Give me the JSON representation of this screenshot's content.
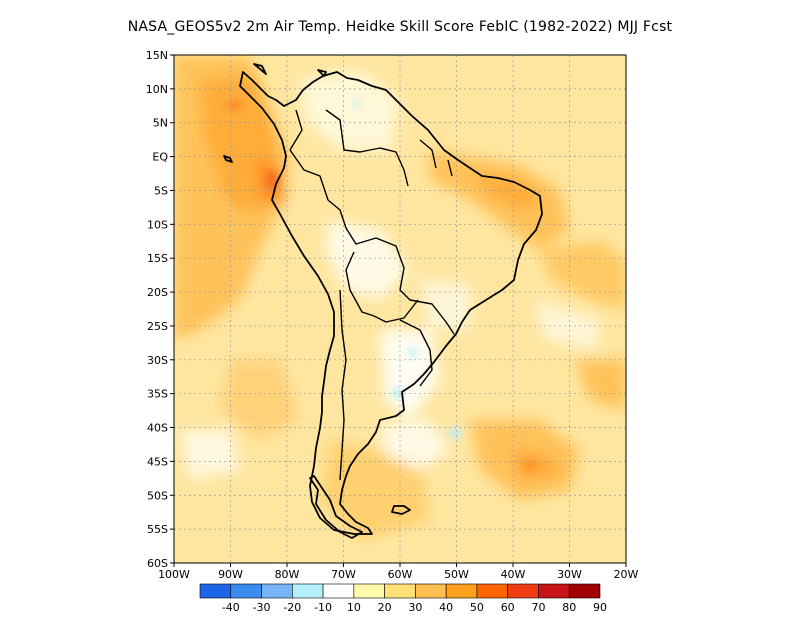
{
  "title": "NASA_GEOS5v2  2m Air Temp. Heidke Skill Score FebIC (1982-2022) MJJ Fcst",
  "lat_labels": [
    "15N",
    "10N",
    "5N",
    "EQ",
    "5S",
    "10S",
    "15S",
    "20S",
    "25S",
    "30S",
    "35S",
    "40S",
    "45S",
    "50S",
    "55S",
    "60S"
  ],
  "lon_labels": [
    "100W",
    "90W",
    "80W",
    "70W",
    "60W",
    "50W",
    "40W",
    "30W",
    "20W"
  ],
  "colorbar": {
    "labels": [
      "-40",
      "-30",
      "-20",
      "-10",
      "10",
      "20",
      "30",
      "40",
      "50",
      "60",
      "70",
      "80",
      "90"
    ],
    "colors": [
      "#1e64e6",
      "#3c8cf0",
      "#78b4f5",
      "#b4f0fa",
      "#ffffff",
      "#fffaaa",
      "#ffe178",
      "#ffbe50",
      "#ffa01e",
      "#ff6400",
      "#f03c14",
      "#c81414",
      "#a00000"
    ]
  },
  "chart_data": {
    "type": "heatmap",
    "title": "NASA_GEOS5v2  2m Air Temp. Heidke Skill Score FebIC (1982-2022) MJJ Fcst",
    "region": {
      "lon": [
        -100,
        -20
      ],
      "lat": [
        -60,
        15
      ]
    },
    "xticks": [
      "100W",
      "90W",
      "80W",
      "70W",
      "60W",
      "50W",
      "40W",
      "30W",
      "20W"
    ],
    "yticks": [
      "15N",
      "10N",
      "5N",
      "EQ",
      "5S",
      "10S",
      "15S",
      "20S",
      "25S",
      "30S",
      "35S",
      "40S",
      "45S",
      "50S",
      "55S",
      "60S"
    ],
    "grid": true,
    "contour_levels": [
      -40,
      -30,
      -20,
      -10,
      10,
      20,
      30,
      40,
      50,
      60,
      70,
      80,
      90
    ]
  }
}
